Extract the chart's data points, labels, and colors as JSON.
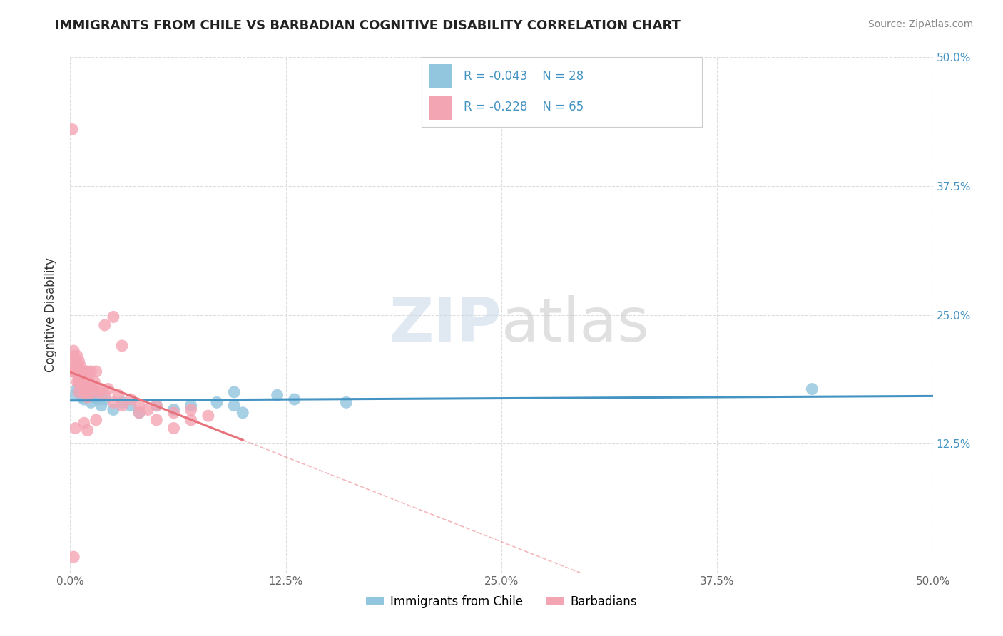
{
  "title": "IMMIGRANTS FROM CHILE VS BARBADIAN COGNITIVE DISABILITY CORRELATION CHART",
  "source": "Source: ZipAtlas.com",
  "ylabel": "Cognitive Disability",
  "xlim": [
    0.0,
    0.5
  ],
  "ylim": [
    0.0,
    0.5
  ],
  "xtick_values": [
    0.0,
    0.125,
    0.25,
    0.375,
    0.5
  ],
  "ytick_values": [
    0.125,
    0.25,
    0.375,
    0.5
  ],
  "legend_r1": "-0.043",
  "legend_n1": "28",
  "legend_r2": "-0.228",
  "legend_n2": "65",
  "color_blue": "#92C5DE",
  "color_pink": "#F4A5B4",
  "color_blue_line": "#4393C3",
  "color_pink_line": "#E8727C",
  "background_color": "#FFFFFF",
  "grid_color": "#DDDDDD",
  "chile_x": [
    0.003,
    0.004,
    0.005,
    0.006,
    0.007,
    0.008,
    0.009,
    0.01,
    0.012,
    0.014,
    0.016,
    0.018,
    0.02,
    0.025,
    0.03,
    0.035,
    0.04,
    0.05,
    0.06,
    0.07,
    0.085,
    0.1,
    0.12,
    0.095,
    0.13,
    0.16,
    0.095,
    0.43
  ],
  "chile_y": [
    0.172,
    0.178,
    0.175,
    0.18,
    0.17,
    0.168,
    0.175,
    0.172,
    0.165,
    0.17,
    0.168,
    0.162,
    0.168,
    0.158,
    0.165,
    0.162,
    0.155,
    0.162,
    0.158,
    0.162,
    0.165,
    0.155,
    0.172,
    0.162,
    0.168,
    0.165,
    0.175,
    0.178
  ],
  "barbadian_x": [
    0.001,
    0.001,
    0.002,
    0.002,
    0.002,
    0.003,
    0.003,
    0.003,
    0.004,
    0.004,
    0.004,
    0.004,
    0.005,
    0.005,
    0.005,
    0.005,
    0.005,
    0.006,
    0.006,
    0.006,
    0.006,
    0.007,
    0.007,
    0.007,
    0.008,
    0.008,
    0.008,
    0.009,
    0.009,
    0.01,
    0.01,
    0.01,
    0.011,
    0.012,
    0.012,
    0.013,
    0.014,
    0.015,
    0.016,
    0.018,
    0.02,
    0.022,
    0.025,
    0.028,
    0.03,
    0.035,
    0.04,
    0.045,
    0.05,
    0.06,
    0.07,
    0.08,
    0.02,
    0.025,
    0.03,
    0.04,
    0.05,
    0.06,
    0.07,
    0.008,
    0.008,
    0.003,
    0.002,
    0.015,
    0.01
  ],
  "barbadian_y": [
    0.43,
    0.195,
    0.21,
    0.215,
    0.195,
    0.205,
    0.2,
    0.195,
    0.21,
    0.195,
    0.185,
    0.2,
    0.205,
    0.19,
    0.195,
    0.185,
    0.175,
    0.2,
    0.19,
    0.185,
    0.195,
    0.195,
    0.185,
    0.18,
    0.19,
    0.175,
    0.185,
    0.19,
    0.175,
    0.195,
    0.18,
    0.17,
    0.185,
    0.18,
    0.195,
    0.175,
    0.185,
    0.195,
    0.175,
    0.178,
    0.172,
    0.178,
    0.165,
    0.172,
    0.162,
    0.168,
    0.162,
    0.158,
    0.162,
    0.155,
    0.158,
    0.152,
    0.24,
    0.248,
    0.22,
    0.155,
    0.148,
    0.14,
    0.148,
    0.195,
    0.145,
    0.14,
    0.015,
    0.148,
    0.138
  ]
}
